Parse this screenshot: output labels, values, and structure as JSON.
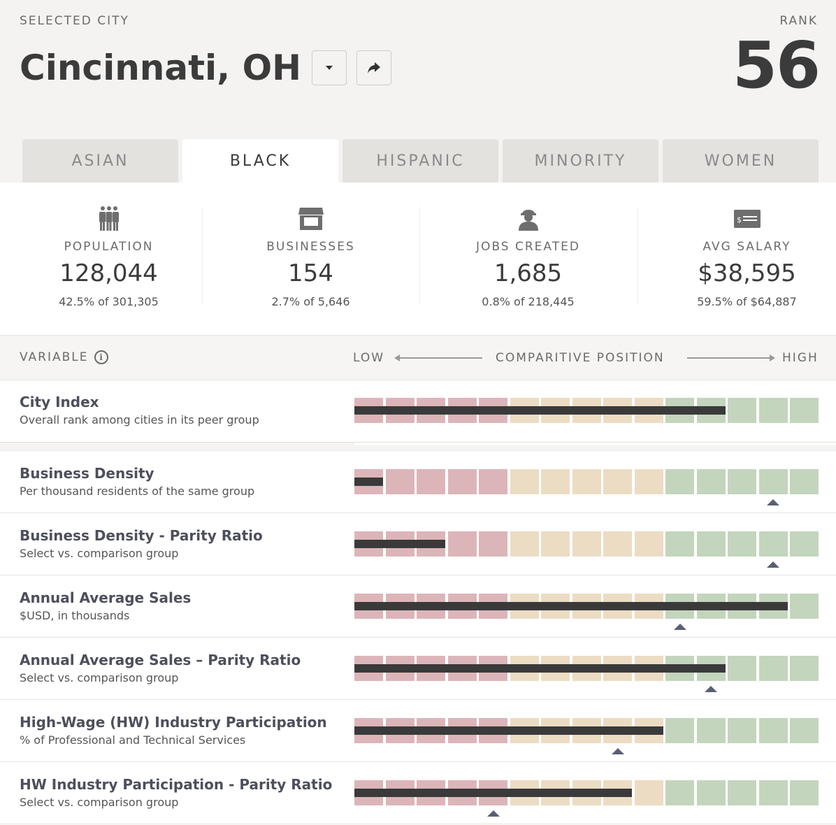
{
  "header": {
    "selected_label": "SELECTED CITY",
    "city": "Cincinnati, OH",
    "rank_label": "RANK",
    "rank": "56"
  },
  "tabs": [
    {
      "label": "ASIAN",
      "active": false
    },
    {
      "label": "BLACK",
      "active": true
    },
    {
      "label": "HISPANIC",
      "active": false
    },
    {
      "label": "MINORITY",
      "active": false
    },
    {
      "label": "WOMEN",
      "active": false
    }
  ],
  "stats": [
    {
      "icon": "people-icon",
      "label": "POPULATION",
      "value": "128,044",
      "sub": "42.5% of 301,305"
    },
    {
      "icon": "storefront-icon",
      "label": "BUSINESSES",
      "value": "154",
      "sub": "2.7% of 5,646"
    },
    {
      "icon": "worker-icon",
      "label": "JOBS CREATED",
      "value": "1,685",
      "sub": "0.8% of 218,445"
    },
    {
      "icon": "money-icon",
      "label": "AVG SALARY",
      "value": "$38,595",
      "sub": "59.5% of $64,887"
    }
  ],
  "scale": {
    "variable_label": "VARIABLE",
    "low": "LOW",
    "middle": "COMPARITIVE POSITION",
    "high": "HIGH"
  },
  "colors": {
    "low": "#dcb5b9",
    "mid": "#ecdcc3",
    "high": "#c3d5bd",
    "fill": "#3a3a3a",
    "marker": "#5a5f72"
  },
  "segments_total": 15,
  "rows": [
    {
      "name": "City Index",
      "desc": "Overall rank among cities in its peer group",
      "filled": 12,
      "marker": null
    },
    {
      "name": "Business Density",
      "desc": "Per thousand residents of the same group",
      "filled": 1,
      "marker": 14
    },
    {
      "name": "Business Density - Parity Ratio",
      "desc": "Select vs. comparison group",
      "filled": 3,
      "marker": 14
    },
    {
      "name": "Annual Average Sales",
      "desc": "$USD, in thousands",
      "filled": 14,
      "marker": 11
    },
    {
      "name": "Annual Average Sales – Parity Ratio",
      "desc": "Select vs. comparison group",
      "filled": 12,
      "marker": 12
    },
    {
      "name": "High-Wage (HW) Industry Participation",
      "desc": "% of Professional and Technical Services",
      "filled": 10,
      "marker": 9
    },
    {
      "name": "HW Industry Participation - Parity Ratio",
      "desc": "Select vs. comparison group",
      "filled": 9,
      "marker": 5
    }
  ]
}
